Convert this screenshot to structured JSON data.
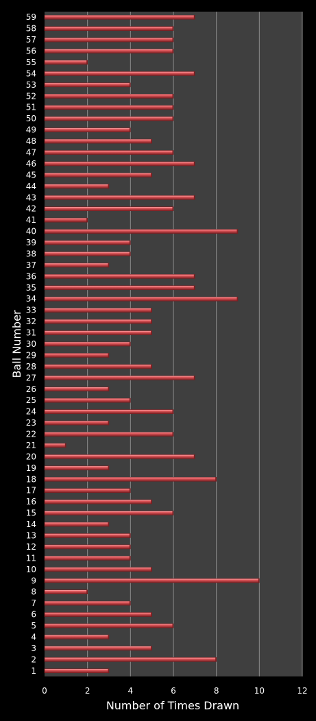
{
  "chart_data": {
    "type": "bar",
    "orientation": "horizontal",
    "title": "",
    "xlabel": "Number of Times Drawn",
    "ylabel": "Ball Number",
    "xlim": [
      0,
      12
    ],
    "xticks": [
      0,
      2,
      4,
      6,
      8,
      10,
      12
    ],
    "grid": true,
    "legend": "none",
    "colors": {
      "background": "#000000",
      "plot_area": "#3f3f3f",
      "gridline": "#8c8c8c",
      "bar_fill": "#e0565a",
      "bar_highlight": "#ffb3b3",
      "bar_shadow": "#7a1f22",
      "text": "#ffffff"
    },
    "categories": [
      "1",
      "2",
      "3",
      "4",
      "5",
      "6",
      "7",
      "8",
      "9",
      "10",
      "11",
      "12",
      "13",
      "14",
      "15",
      "16",
      "17",
      "18",
      "19",
      "20",
      "21",
      "22",
      "23",
      "24",
      "25",
      "26",
      "27",
      "28",
      "29",
      "30",
      "31",
      "32",
      "33",
      "34",
      "35",
      "36",
      "37",
      "38",
      "39",
      "40",
      "41",
      "42",
      "43",
      "44",
      "45",
      "46",
      "47",
      "48",
      "49",
      "50",
      "51",
      "52",
      "53",
      "54",
      "55",
      "56",
      "57",
      "58",
      "59"
    ],
    "values": [
      3,
      8,
      5,
      3,
      6,
      5,
      4,
      2,
      10,
      5,
      4,
      4,
      4,
      3,
      6,
      5,
      4,
      8,
      3,
      7,
      1,
      6,
      3,
      6,
      4,
      3,
      7,
      5,
      3,
      4,
      5,
      5,
      5,
      9,
      7,
      7,
      3,
      4,
      4,
      9,
      2,
      6,
      7,
      3,
      5,
      7,
      6,
      5,
      4,
      6,
      6,
      6,
      4,
      7,
      2,
      6,
      6,
      6,
      7
    ]
  }
}
